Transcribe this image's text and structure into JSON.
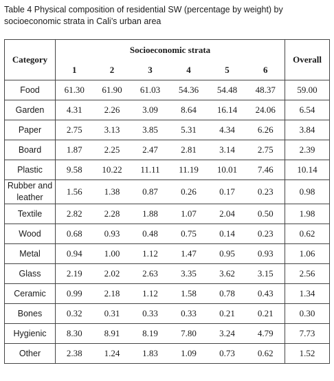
{
  "caption": [
    "Table 4 Physical composition of residential SW (percentage by weight) by",
    "socioeconomic strata in Cali’s urban area"
  ],
  "table": {
    "header": {
      "category": "Category",
      "group": "Socioeconomic strata",
      "overall": "Overall",
      "strata": [
        "1",
        "2",
        "3",
        "4",
        "5",
        "6"
      ]
    },
    "rows": [
      [
        "Food",
        "61.30",
        "61.90",
        "61.03",
        "54.36",
        "54.48",
        "48.37",
        "59.00"
      ],
      [
        "Garden",
        "4.31",
        "2.26",
        "3.09",
        "8.64",
        "16.14",
        "24.06",
        "6.54"
      ],
      [
        "Paper",
        "2.75",
        "3.13",
        "3.85",
        "5.31",
        "4.34",
        "6.26",
        "3.84"
      ],
      [
        "Board",
        "1.87",
        "2.25",
        "2.47",
        "2.81",
        "3.14",
        "2.75",
        "2.39"
      ],
      [
        "Plastic",
        "9.58",
        "10.22",
        "11.11",
        "11.19",
        "10.01",
        "7.46",
        "10.14"
      ],
      [
        "Rubber and leather",
        "1.56",
        "1.38",
        "0.87",
        "0.26",
        "0.17",
        "0.23",
        "0.98"
      ],
      [
        "Textile",
        "2.82",
        "2.28",
        "1.88",
        "1.07",
        "2.04",
        "0.50",
        "1.98"
      ],
      [
        "Wood",
        "0.68",
        "0.93",
        "0.48",
        "0.75",
        "0.14",
        "0.23",
        "0.62"
      ],
      [
        "Metal",
        "0.94",
        "1.00",
        "1.12",
        "1.47",
        "0.95",
        "0.93",
        "1.06"
      ],
      [
        "Glass",
        "2.19",
        "2.02",
        "2.63",
        "3.35",
        "3.62",
        "3.15",
        "2.56"
      ],
      [
        "Ceramic",
        "0.99",
        "2.18",
        "1.12",
        "1.58",
        "0.78",
        "0.43",
        "1.34"
      ],
      [
        "Bones",
        "0.32",
        "0.31",
        "0.33",
        "0.33",
        "0.21",
        "0.21",
        "0.30"
      ],
      [
        "Hygienic",
        "8.30",
        "8.91",
        "8.19",
        "7.80",
        "3.24",
        "4.79",
        "7.73"
      ],
      [
        "Other",
        "2.38",
        "1.24",
        "1.83",
        "1.09",
        "0.73",
        "0.62",
        "1.52"
      ]
    ]
  }
}
